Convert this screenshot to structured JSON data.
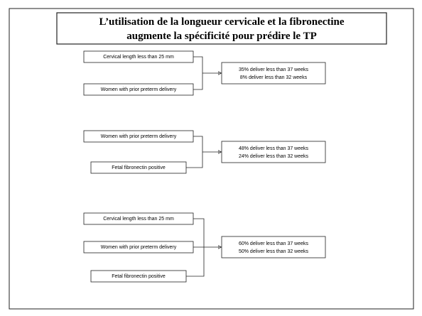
{
  "title": [
    "L’utilisation de la longueur cervicale et la fibronectine",
    "augmente la spécificité pour prédire le TP"
  ],
  "groups": [
    {
      "factors": [
        "Cervical length less than 25 mm",
        "Women with prior preterm delivery"
      ],
      "results": [
        "35% deliver less than 37 weeks",
        "8% deliver less than 32 weeks"
      ]
    },
    {
      "factors": [
        "Women with prior preterm delivery",
        "Fetal fibronectin positive"
      ],
      "results": [
        "48% deliver less than 37 weeks",
        "24% deliver less than 32 weeks"
      ]
    },
    {
      "factors": [
        "Cervical length less than 25 mm",
        "Women with prior preterm delivery",
        "Fetal fibronectin positive"
      ],
      "results": [
        "60% deliver less than 37 weeks",
        "50% deliver less than 32 weeks"
      ]
    }
  ]
}
